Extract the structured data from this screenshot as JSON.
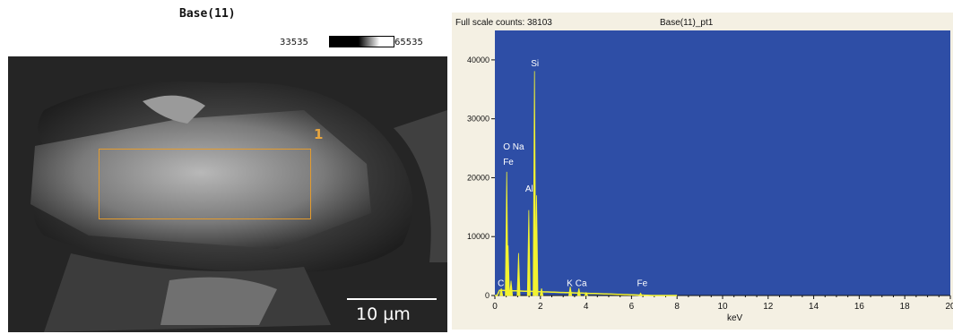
{
  "sem_panel": {
    "title": "Base(11)",
    "contrast_min": "33535",
    "contrast_max": "65535",
    "region_label": "1",
    "scale_bar": "10 µm"
  },
  "chart_data": {
    "type": "line",
    "header": "Full scale counts: 38103",
    "title": "Base(11)_pt1",
    "xlabel": "keV",
    "ylabel": "",
    "xlim": [
      0,
      20
    ],
    "ylim": [
      0,
      45000
    ],
    "xticks": [
      0,
      2,
      4,
      6,
      8,
      10,
      12,
      14,
      16,
      18,
      20
    ],
    "yticks": [
      0,
      10000,
      20000,
      30000,
      40000
    ],
    "background_color": "#2e4ea6",
    "spectrum_color": "#f2f230",
    "grid": false,
    "peaks": [
      {
        "x": 0.28,
        "y": 1200
      },
      {
        "x": 0.52,
        "y": 21000
      },
      {
        "x": 0.58,
        "y": 8500
      },
      {
        "x": 0.71,
        "y": 2500
      },
      {
        "x": 1.04,
        "y": 7200
      },
      {
        "x": 1.49,
        "y": 14500
      },
      {
        "x": 1.74,
        "y": 38103
      },
      {
        "x": 1.83,
        "y": 17000
      },
      {
        "x": 2.05,
        "y": 1200
      },
      {
        "x": 3.31,
        "y": 1500
      },
      {
        "x": 3.69,
        "y": 1200
      },
      {
        "x": 4.01,
        "y": 500
      },
      {
        "x": 6.4,
        "y": 400
      }
    ],
    "annotations": [
      {
        "text": "Si",
        "x": 1.74,
        "y": 38900
      },
      {
        "text": "O Na",
        "x": 0.52,
        "y": 24800
      },
      {
        "text": "Fe",
        "x": 0.52,
        "y": 22200
      },
      {
        "text": "Al",
        "x": 1.49,
        "y": 17600
      },
      {
        "text": "C",
        "x": 0.28,
        "y": 1600
      },
      {
        "text": "K",
        "x": 3.31,
        "y": 1600
      },
      {
        "text": "Ca",
        "x": 3.69,
        "y": 1600
      },
      {
        "text": "Fe",
        "x": 6.4,
        "y": 1600
      }
    ]
  }
}
